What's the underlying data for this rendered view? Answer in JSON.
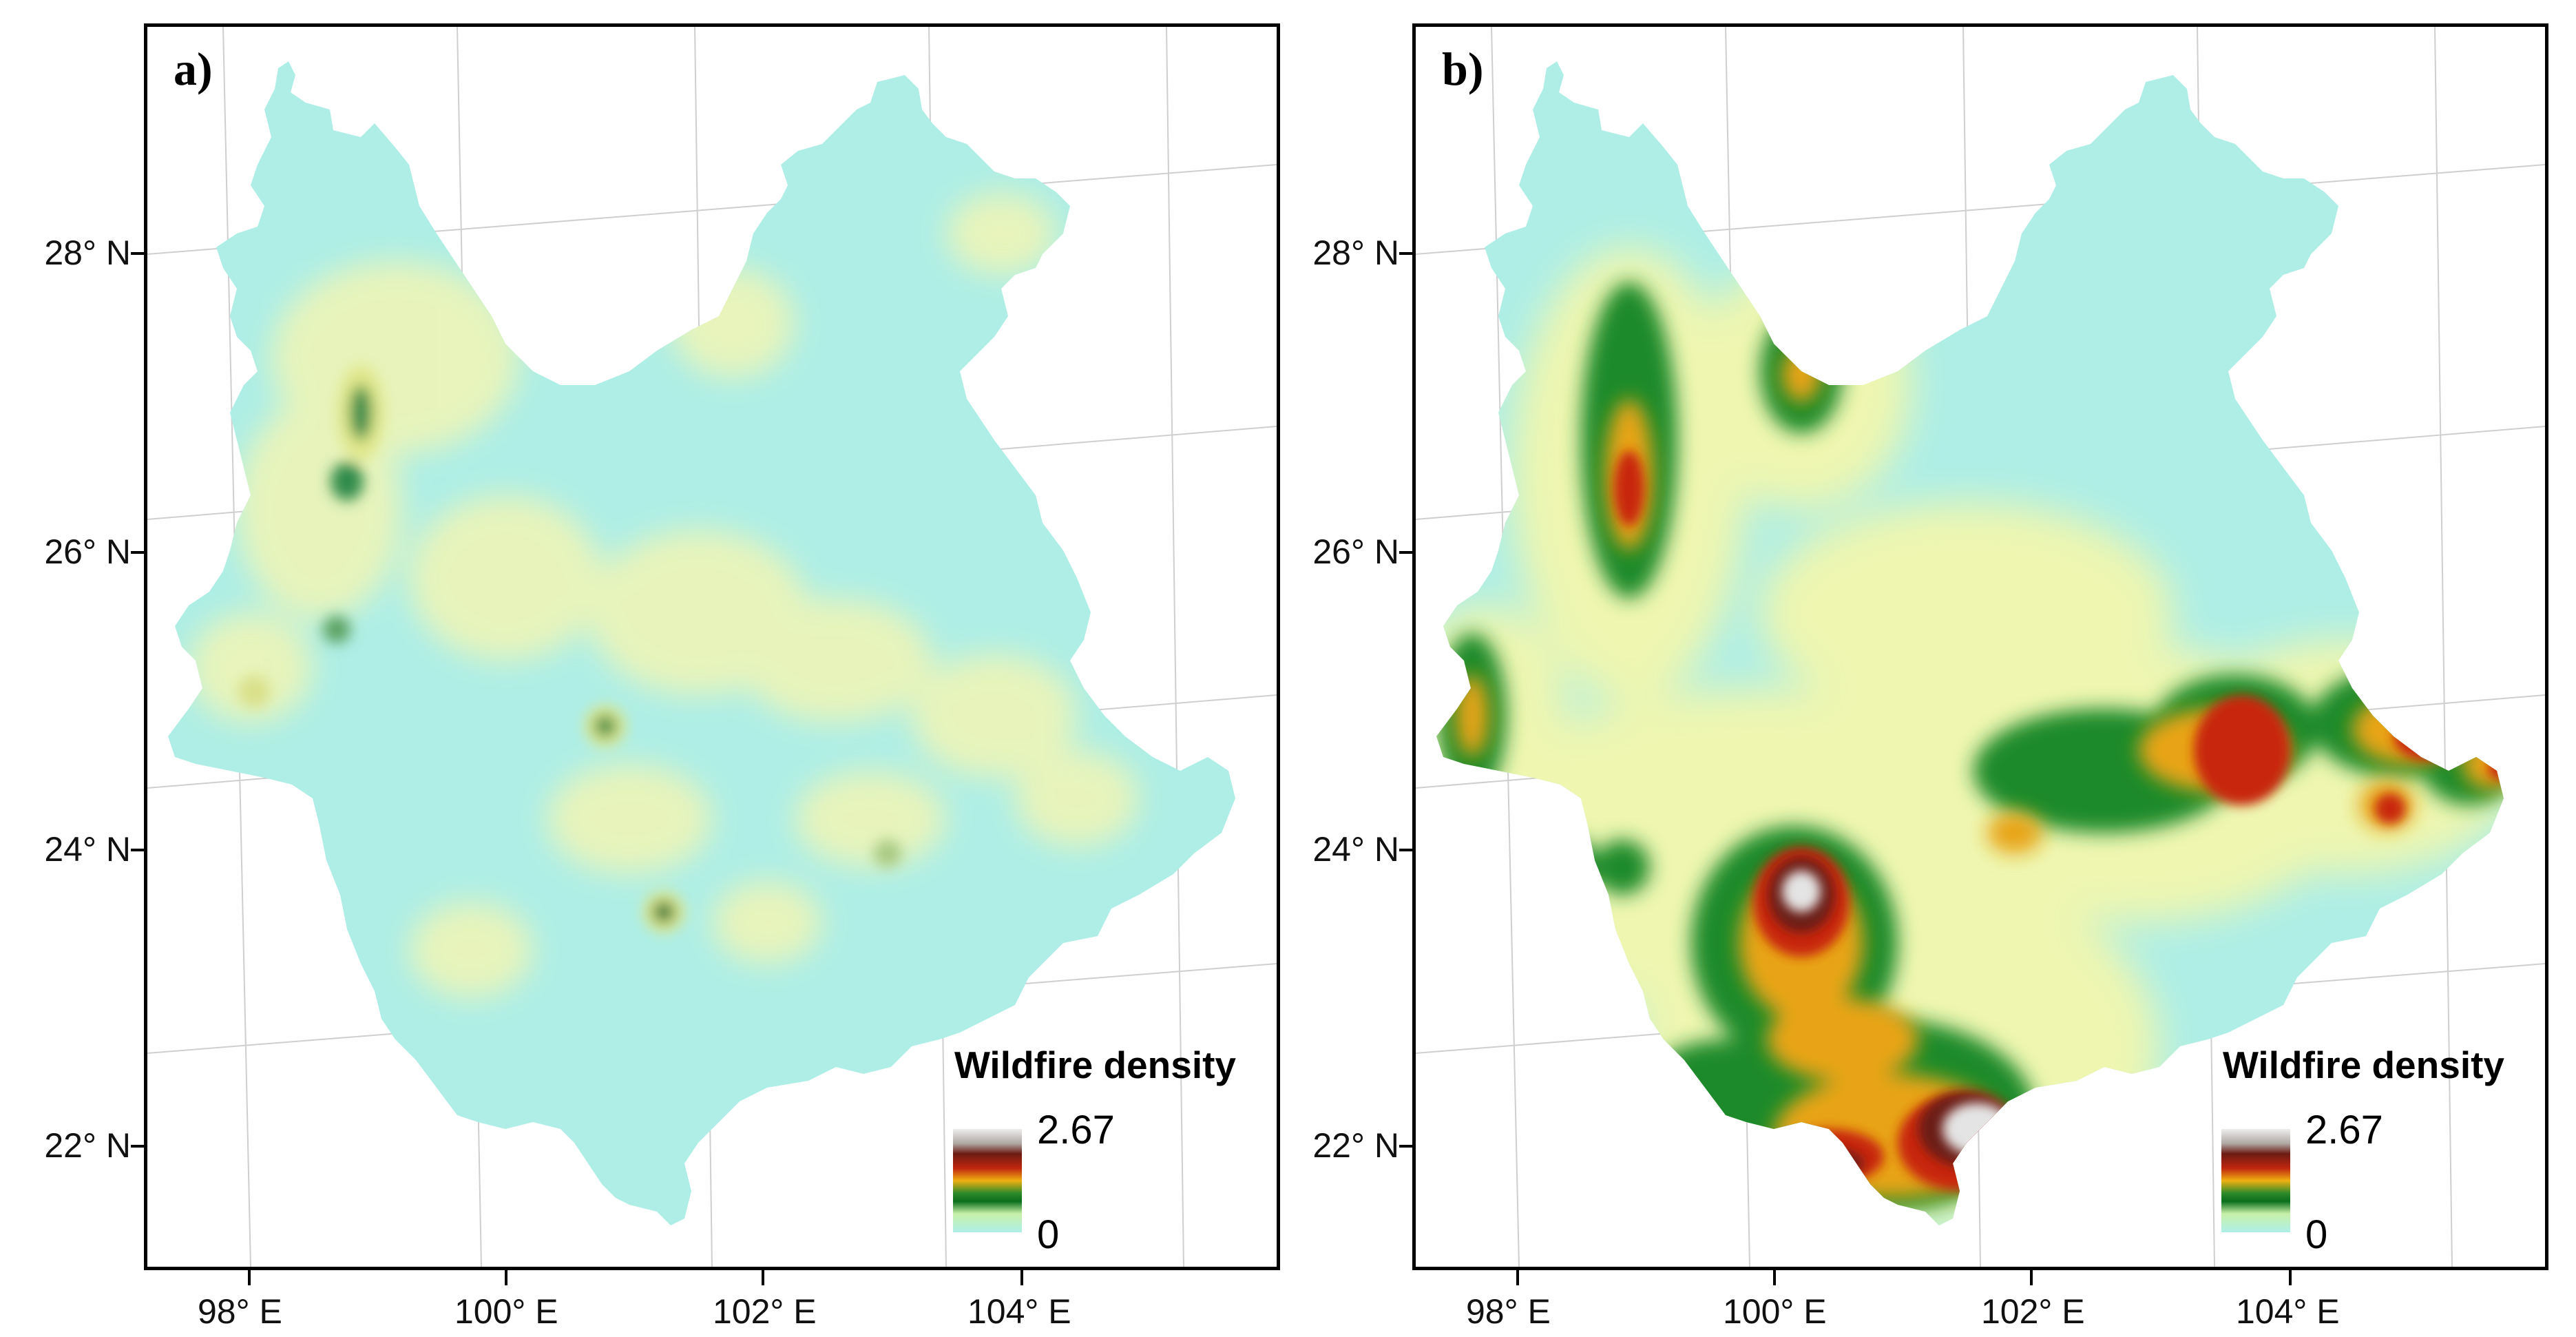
{
  "panels": [
    {
      "id": "a",
      "label": "a)",
      "legend": {
        "title": "Wildfire density",
        "max": "2.67",
        "min": "0"
      }
    },
    {
      "id": "b",
      "label": "b)",
      "legend": {
        "title": "Wildfire density",
        "max": "2.67",
        "min": "0"
      }
    }
  ],
  "axes": {
    "lat_labels": [
      "28° N",
      "26° N",
      "24° N",
      "22° N"
    ],
    "lon_labels": [
      "98° E",
      "100° E",
      "102° E",
      "104° E"
    ]
  },
  "colors": {
    "base": "#aeeee6",
    "low": "#f6f6b0",
    "green": "#0f7a26",
    "orange": "#e8a010",
    "red": "#c0260f",
    "darkred": "#6b1c14",
    "white": "#e8e8e8"
  },
  "map_data": {
    "region": "outline of a province, density surface",
    "panel_a_hotspots": [
      {
        "lon": 99.1,
        "lat": 26.9,
        "level": "green"
      },
      {
        "lon": 99.0,
        "lat": 26.4,
        "level": "green"
      },
      {
        "lon": 100.4,
        "lat": 27.4,
        "level": "green"
      },
      {
        "lon": 100.6,
        "lat": 24.5,
        "level": "green"
      },
      {
        "lon": 101.0,
        "lat": 23.2,
        "level": "green"
      },
      {
        "lon": 99.1,
        "lat": 25.2,
        "level": "light"
      },
      {
        "lon": 98.0,
        "lat": 24.7,
        "level": "light"
      },
      {
        "lon": 103.0,
        "lat": 23.8,
        "level": "light"
      }
    ],
    "panel_b_hotspots": [
      {
        "lon": 99.1,
        "lat": 26.1,
        "level": "red"
      },
      {
        "lon": 100.7,
        "lat": 26.9,
        "level": "orange"
      },
      {
        "lon": 97.7,
        "lat": 24.6,
        "level": "orange"
      },
      {
        "lon": 100.4,
        "lat": 23.6,
        "level": "white"
      },
      {
        "lon": 101.2,
        "lat": 22.0,
        "level": "white"
      },
      {
        "lon": 100.5,
        "lat": 21.8,
        "level": "red"
      },
      {
        "lon": 103.2,
        "lat": 24.3,
        "level": "red"
      },
      {
        "lon": 104.2,
        "lat": 24.7,
        "level": "red"
      },
      {
        "lon": 104.1,
        "lat": 24.0,
        "level": "red"
      },
      {
        "lon": 105.2,
        "lat": 24.3,
        "level": "orange"
      },
      {
        "lon": 101.9,
        "lat": 23.8,
        "level": "orange"
      }
    ]
  }
}
